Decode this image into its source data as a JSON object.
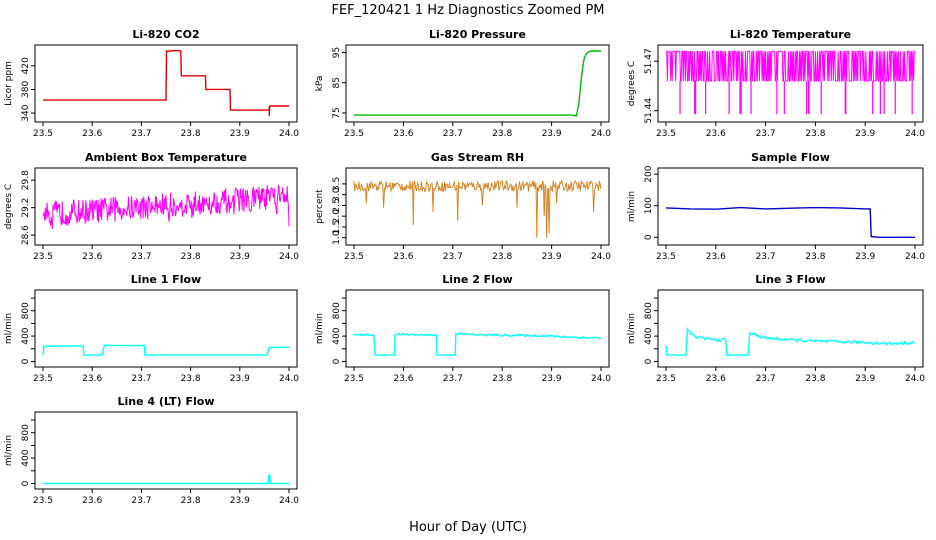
{
  "figure": {
    "title": "FEF_120421  1 Hz Diagnostics Zoomed PM",
    "xlabel": "Hour of Day (UTC)"
  },
  "chart_data": [
    {
      "type": "line",
      "id": "co2",
      "title": "Li-820 CO2",
      "ylabel": "Licor ppm",
      "color": "#dd0000",
      "xlim": [
        23.5,
        24.0
      ],
      "xticks": [
        23.5,
        23.6,
        23.7,
        23.8,
        23.9,
        24.0
      ],
      "ylim": [
        330,
        450
      ],
      "yticks": [
        340,
        380,
        420
      ],
      "ytick_labels": [
        "340",
        "380",
        "420"
      ],
      "x": [
        23.5,
        23.6,
        23.7,
        23.75,
        23.751,
        23.76,
        23.77,
        23.78,
        23.781,
        23.8,
        23.82,
        23.83,
        23.831,
        23.85,
        23.87,
        23.88,
        23.881,
        23.9,
        23.94,
        23.95,
        23.96,
        23.961,
        23.98,
        24.0
      ],
      "y": [
        362,
        362,
        362,
        362,
        445,
        445,
        446,
        445,
        403,
        403,
        403,
        403,
        380,
        380,
        380,
        380,
        345,
        345,
        345,
        345,
        345,
        352,
        352,
        352
      ],
      "spikes": [
        {
          "x": 23.96,
          "y": 335
        }
      ],
      "grid": false
    },
    {
      "type": "line",
      "id": "pressure",
      "title": "Li-820 Pressure",
      "ylabel": "kPa",
      "color": "#00bb00",
      "xlim": [
        23.5,
        24.0
      ],
      "xticks": [
        23.5,
        23.6,
        23.7,
        23.8,
        23.9,
        24.0
      ],
      "ylim": [
        73,
        96.5
      ],
      "yticks": [
        75,
        85,
        95
      ],
      "ytick_labels": [
        "75",
        "85",
        "95"
      ],
      "x": [
        23.5,
        23.6,
        23.7,
        23.8,
        23.9,
        23.91,
        23.92,
        23.94,
        23.95,
        23.955,
        23.96,
        23.963,
        23.966,
        23.97,
        23.975,
        23.98,
        24.0
      ],
      "y": [
        74.3,
        74.3,
        74.3,
        74.3,
        74.3,
        74.3,
        74.3,
        74.3,
        74.0,
        78,
        86,
        90,
        93,
        94.5,
        95.3,
        95.5,
        95.5
      ],
      "grid": false
    },
    {
      "type": "line",
      "id": "temp",
      "title": "Li-820 Temperature",
      "ylabel": "degrees C",
      "color": "#ff00ff",
      "xlim": [
        23.5,
        24.0
      ],
      "xticks": [
        23.5,
        23.6,
        23.7,
        23.8,
        23.9,
        24.0
      ],
      "ylim": [
        51.435,
        51.478
      ],
      "yticks": [
        51.44,
        51.47
      ],
      "ytick_labels": [
        "51.44",
        "51.47"
      ],
      "pattern": "binary-toggle",
      "levels": [
        51.476,
        51.458
      ],
      "low_level": 51.438,
      "grid": false
    },
    {
      "type": "line",
      "id": "ambient",
      "title": "Ambient Box Temperature",
      "ylabel": "degrees C",
      "color": "#ff00ff",
      "xlim": [
        23.5,
        24.0
      ],
      "xticks": [
        23.5,
        23.6,
        23.7,
        23.8,
        23.9,
        24.0
      ],
      "ylim": [
        28.45,
        30.0
      ],
      "yticks": [
        28.6,
        29.2,
        29.8
      ],
      "ytick_labels": [
        "28.6",
        "29.2",
        "29.8"
      ],
      "pattern": "noisy-trend",
      "start": 29.05,
      "end": 29.45,
      "grid": false
    },
    {
      "type": "line",
      "id": "rh",
      "title": "Gas Stream RH",
      "ylabel": "percent",
      "color": "#ff8800",
      "color2": "#555555",
      "xlim": [
        23.5,
        24.0
      ],
      "xticks": [
        23.5,
        23.6,
        23.7,
        23.8,
        23.9,
        24.0
      ],
      "ylim": [
        0.8,
        4.1
      ],
      "yticks": [
        1.0,
        1.5,
        2.0,
        2.5,
        3.0,
        3.5
      ],
      "ytick_labels": [
        "1.0",
        "1.5",
        "2.0",
        "2.5",
        "3.0",
        "3.5"
      ],
      "pattern": "noisy-dips",
      "base": 3.4,
      "dips": [
        {
          "x": 23.525,
          "y": 2.6
        },
        {
          "x": 23.56,
          "y": 2.4
        },
        {
          "x": 23.62,
          "y": 1.6
        },
        {
          "x": 23.66,
          "y": 2.2
        },
        {
          "x": 23.71,
          "y": 1.8
        },
        {
          "x": 23.76,
          "y": 2.5
        },
        {
          "x": 23.83,
          "y": 2.4
        },
        {
          "x": 23.87,
          "y": 1.0
        },
        {
          "x": 23.885,
          "y": 2.0
        },
        {
          "x": 23.89,
          "y": 1.0
        },
        {
          "x": 23.895,
          "y": 1.2
        },
        {
          "x": 23.91,
          "y": 2.6
        },
        {
          "x": 23.985,
          "y": 2.2
        }
      ],
      "grid": false
    },
    {
      "type": "line",
      "id": "sample",
      "title": "Sample Flow",
      "ylabel": "ml/min",
      "color": "#0000cc",
      "xlim": [
        23.5,
        24.0
      ],
      "xticks": [
        23.5,
        23.6,
        23.7,
        23.8,
        23.9,
        24.0
      ],
      "ylim": [
        -15,
        210
      ],
      "yticks": [
        0,
        100,
        200
      ],
      "ytick_labels": [
        "0",
        "100",
        "200"
      ],
      "x": [
        23.5,
        23.55,
        23.6,
        23.65,
        23.7,
        23.75,
        23.8,
        23.85,
        23.9,
        23.91,
        23.912,
        23.93,
        23.96,
        24.0
      ],
      "y": [
        93,
        90,
        89,
        94,
        90,
        92,
        94,
        93,
        90,
        90,
        2,
        0,
        0,
        0
      ],
      "grid": false
    },
    {
      "type": "line",
      "id": "line1",
      "title": "Line 1 Flow",
      "ylabel": "ml/min",
      "color": "#00ffff",
      "xlim": [
        23.5,
        24.0
      ],
      "xticks": [
        23.5,
        23.6,
        23.7,
        23.8,
        23.9,
        24.0
      ],
      "ylim": [
        -40,
        1080
      ],
      "yticks": [
        0,
        200,
        400,
        600,
        800,
        1000
      ],
      "ytick_labels": [
        "0",
        "",
        "400",
        "",
        "800",
        ""
      ],
      "x": [
        23.5,
        23.502,
        23.55,
        23.582,
        23.583,
        23.62,
        23.625,
        23.68,
        23.706,
        23.707,
        23.8,
        23.9,
        23.955,
        23.96,
        24.0
      ],
      "y": [
        100,
        240,
        245,
        242,
        100,
        100,
        255,
        250,
        252,
        100,
        100,
        100,
        100,
        220,
        225
      ],
      "grid": false
    },
    {
      "type": "line",
      "id": "line2",
      "title": "Line 2 Flow",
      "ylabel": "ml/min",
      "color": "#00ffff",
      "xlim": [
        23.5,
        24.0
      ],
      "xticks": [
        23.5,
        23.6,
        23.7,
        23.8,
        23.9,
        24.0
      ],
      "ylim": [
        -40,
        1080
      ],
      "yticks": [
        0,
        200,
        400,
        600,
        800,
        1000
      ],
      "ytick_labels": [
        "0",
        "",
        "400",
        "",
        "800",
        ""
      ],
      "x": [
        23.5,
        23.54,
        23.543,
        23.582,
        23.583,
        23.63,
        23.667,
        23.668,
        23.705,
        23.706,
        23.75,
        23.8,
        23.85,
        23.9,
        23.95,
        24.0
      ],
      "y": [
        420,
        420,
        100,
        100,
        430,
        420,
        420,
        100,
        100,
        440,
        420,
        415,
        410,
        400,
        380,
        370
      ],
      "noise": 15,
      "grid": false
    },
    {
      "type": "line",
      "id": "line3",
      "title": "Line 3 Flow",
      "ylabel": "ml/min",
      "color": "#00ffff",
      "xlim": [
        23.5,
        24.0
      ],
      "xticks": [
        23.5,
        23.6,
        23.7,
        23.8,
        23.9,
        24.0
      ],
      "ylim": [
        -40,
        1080
      ],
      "yticks": [
        0,
        200,
        400,
        600,
        800,
        1000
      ],
      "ytick_labels": [
        "0",
        "",
        "400",
        "",
        "800",
        ""
      ],
      "x": [
        23.5,
        23.502,
        23.51,
        23.54,
        23.543,
        23.56,
        23.6,
        23.62,
        23.622,
        23.665,
        23.668,
        23.7,
        23.75,
        23.8,
        23.85,
        23.9,
        23.95,
        24.0
      ],
      "y": [
        250,
        100,
        100,
        100,
        500,
        380,
        340,
        340,
        100,
        100,
        450,
        370,
        340,
        320,
        310,
        300,
        280,
        300
      ],
      "noise": 22,
      "grid": false
    },
    {
      "type": "line",
      "id": "line4",
      "title": "Line 4 (LT) Flow",
      "ylabel": "ml/min",
      "color": "#00ffff",
      "xlim": [
        23.5,
        24.0
      ],
      "xticks": [
        23.5,
        23.6,
        23.7,
        23.8,
        23.9,
        24.0
      ],
      "ylim": [
        -40,
        1080
      ],
      "yticks": [
        0,
        200,
        400,
        600,
        800,
        1000
      ],
      "ytick_labels": [
        "0",
        "",
        "400",
        "",
        "800",
        ""
      ],
      "x": [
        23.5,
        23.6,
        23.7,
        23.8,
        23.9,
        23.958,
        23.959,
        23.961,
        23.962,
        24.0
      ],
      "y": [
        0,
        0,
        0,
        0,
        0,
        0,
        130,
        130,
        0,
        0
      ],
      "grid": false
    }
  ]
}
